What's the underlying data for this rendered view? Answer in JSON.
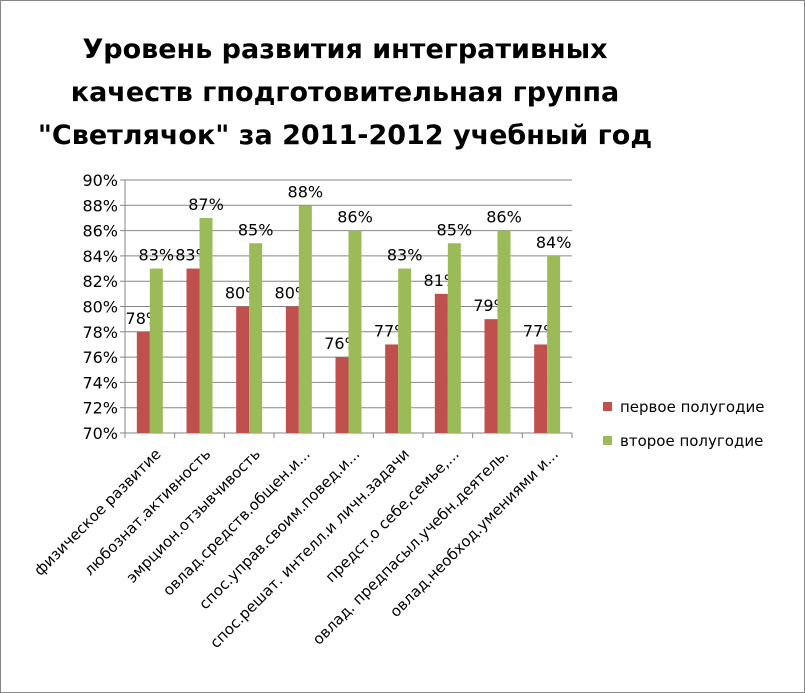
{
  "chart_data": {
    "type": "bar",
    "title_lines": [
      "Уровень развития интегративных",
      "качеств гподготовительная  группа",
      "\"Светлячок\" за 2011-2012 учебный год"
    ],
    "categories": [
      "физическое развитие",
      "любознат.активность",
      "эмрцион.отзывчивость",
      "овлад.средств.общен.и...",
      "спос.управ.своим.повед.и...",
      "спос.решат. интелл.и личн.задачи",
      "предст.о себе,семье,...",
      "овлад. предпасыл.учебн.деятель.",
      "овлад.необход.умениями и..."
    ],
    "series": [
      {
        "name": "первое полугодие",
        "color": "#c0504d",
        "values": [
          78,
          83,
          80,
          80,
          76,
          77,
          81,
          79,
          77
        ]
      },
      {
        "name": "второе полугодие",
        "color": "#9bbb59",
        "values": [
          83,
          87,
          85,
          88,
          86,
          83,
          85,
          86,
          84
        ]
      }
    ],
    "ylim": [
      70,
      90
    ],
    "ytick_step": 2,
    "y_unit": "%",
    "grid": true,
    "data_labels": true,
    "legend_position": "right"
  }
}
